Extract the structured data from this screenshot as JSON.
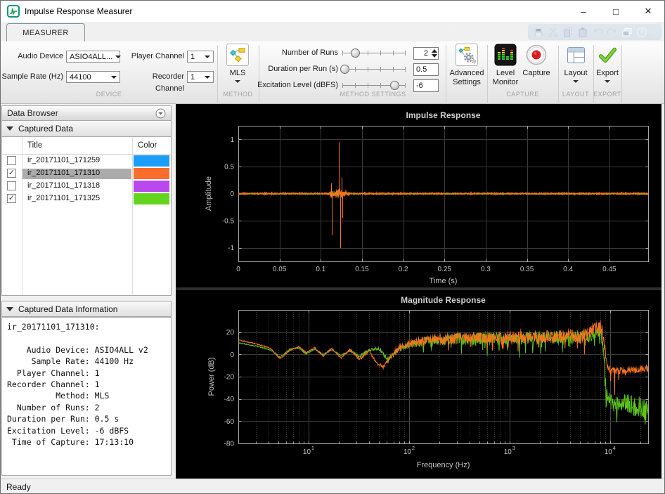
{
  "window": {
    "title": "Impulse Response Measurer",
    "minimize_glyph": "–",
    "maximize_glyph": "□",
    "close_glyph": "×",
    "status": "Ready"
  },
  "ribbon": {
    "tab": "MEASURER",
    "quick_access": [
      {
        "name": "save",
        "disabled": true
      },
      {
        "name": "cut",
        "disabled": true
      },
      {
        "name": "copy",
        "disabled": true
      },
      {
        "name": "paste",
        "disabled": true
      },
      {
        "name": "undo",
        "disabled": true
      },
      {
        "name": "redo",
        "disabled": true
      },
      {
        "name": "windows",
        "disabled": false
      },
      {
        "name": "help",
        "disabled": false
      }
    ]
  },
  "toolbar": {
    "device": {
      "section_label": "DEVICE",
      "audio_device": {
        "label": "Audio Device",
        "value": "ASIO4ALL..."
      },
      "player_channel": {
        "label": "Player Channel",
        "value": "1"
      },
      "sample_rate": {
        "label": "Sample Rate (Hz)",
        "value": "44100"
      },
      "recorder_channel": {
        "label": "Recorder Channel",
        "value": "1"
      }
    },
    "method": {
      "section_label": "METHOD",
      "button_label": "MLS"
    },
    "method_settings": {
      "section_label": "METHOD SETTINGS",
      "number_of_runs": {
        "label": "Number of Runs",
        "value": "2",
        "slider_pos": 0.2
      },
      "duration_per_run": {
        "label": "Duration per Run (s)",
        "value": "0.5",
        "slider_pos": 0.03
      },
      "excitation_level": {
        "label": "Excitation Level (dBFS)",
        "value": "-6",
        "slider_pos": 0.82
      },
      "advanced_line1": "Advanced",
      "advanced_line2": "Settings"
    },
    "capture": {
      "section_label": "CAPTURE",
      "level_monitor_line1": "Level",
      "level_monitor_line2": "Monitor",
      "capture_label": "Capture"
    },
    "layout": {
      "section_label": "LAYOUT",
      "button_label": "Layout"
    },
    "export": {
      "section_label": "EXPORT",
      "button_label": "Export"
    }
  },
  "data_browser": {
    "title": "Data Browser",
    "captured_data": {
      "header": "Captured Data",
      "columns": {
        "title": "Title",
        "color": "Color"
      },
      "rows": [
        {
          "checked": false,
          "selected": false,
          "title": "ir_20171101_171259",
          "color": "#1b9dfa"
        },
        {
          "checked": true,
          "selected": true,
          "title": "ir_20171101_171310",
          "color": "#fb6d2a"
        },
        {
          "checked": false,
          "selected": false,
          "title": "ir_20171101_171318",
          "color": "#b948ee"
        },
        {
          "checked": true,
          "selected": false,
          "title": "ir_20171101_171325",
          "color": "#64d41e"
        }
      ]
    },
    "info": {
      "header": "Captured Data Information",
      "lines": [
        "ir_20171101_171310:",
        "",
        "    Audio Device: ASIO4ALL v2",
        "     Sample Rate: 44100 Hz",
        "  Player Channel: 1",
        "Recorder Channel: 1",
        "          Method: MLS",
        "  Number of Runs: 2",
        "Duration per Run: 0.5 s",
        "Excitation Level: -6 dBFS",
        " Time of Capture: 17:13:10"
      ]
    }
  },
  "chart_data": [
    {
      "type": "line",
      "title": "Impulse Response",
      "xlabel": "Time (s)",
      "ylabel": "Amplitude",
      "xlim": [
        0,
        0.497
      ],
      "ylim": [
        -1.25,
        1.25
      ],
      "xticks": [
        0,
        0.05,
        0.1,
        0.15,
        0.2,
        0.25,
        0.3,
        0.35,
        0.4,
        0.45
      ],
      "yticks": [
        -1,
        -0.5,
        0,
        0.5,
        1
      ],
      "bg": "#000000",
      "grid": "#3a3a3a",
      "frame": "#a6a6a6",
      "text": "#c2c2c2",
      "series": [
        {
          "name": "ir_20171101_171325",
          "color": "#5fc31d",
          "seed": 7,
          "noise_base": 0.011,
          "bursts": [
            {
              "x": 0.1215,
              "w": 0.004,
              "a": 0.05
            },
            {
              "x": 0.113,
              "w": 0.002,
              "a": 0.03
            }
          ],
          "spikes": [
            [
              0.1218,
              0.25
            ],
            [
              0.1232,
              -0.35
            ]
          ]
        },
        {
          "name": "ir_20171101_171310",
          "color": "#f9731d",
          "seed": 3,
          "noise_base": 0.014,
          "bursts": [
            {
              "x": 0.113,
              "w": 0.0025,
              "a": 0.055
            },
            {
              "x": 0.1225,
              "w": 0.0045,
              "a": 0.09
            },
            {
              "x": 0.129,
              "w": 0.004,
              "a": 0.03
            }
          ],
          "spikes": [
            [
              0.1128,
              0.19
            ],
            [
              0.1136,
              -0.77
            ],
            [
              0.1222,
              0.95
            ],
            [
              0.1237,
              -1.0
            ],
            [
              0.1252,
              0.3
            ],
            [
              0.1262,
              -0.45
            ]
          ]
        }
      ]
    },
    {
      "type": "line",
      "xscale": "log",
      "title": "Magnitude Response",
      "xlabel": "Frequency (Hz)",
      "ylabel": "Power (dB)",
      "xlim": [
        2,
        24000
      ],
      "ylim": [
        -80,
        40
      ],
      "xtick_decades": [
        1,
        2,
        3,
        4
      ],
      "yticks": [
        -80,
        -60,
        -40,
        -20,
        0,
        20
      ],
      "bg": "#000000",
      "grid": "#3a3a3a",
      "grid_minor": "#313131",
      "frame": "#a6a6a6",
      "text": "#c2c2c2",
      "series": [
        {
          "name": "ir_20171101_171325",
          "color": "#5fc31d",
          "seed": 11,
          "env": [
            [
              2,
              10.5
            ],
            [
              3,
              7.5
            ],
            [
              4.2,
              4
            ],
            [
              5.2,
              -2.5
            ],
            [
              6.5,
              4.5
            ],
            [
              8,
              6
            ],
            [
              9.5,
              0.5
            ],
            [
              11.5,
              5
            ],
            [
              14,
              -0.5
            ],
            [
              17,
              4.5
            ],
            [
              21,
              -1
            ],
            [
              26,
              3.5
            ],
            [
              32,
              -2
            ],
            [
              40,
              4
            ],
            [
              50,
              5.5
            ],
            [
              62,
              -5
            ],
            [
              75,
              3
            ],
            [
              90,
              7
            ],
            [
              110,
              9.5
            ],
            [
              150,
              12
            ],
            [
              250,
              13.5
            ],
            [
              500,
              14
            ],
            [
              1000,
              14.5
            ],
            [
              2000,
              15
            ],
            [
              4000,
              15.5
            ],
            [
              6000,
              16.5
            ],
            [
              7200,
              19
            ],
            [
              8000,
              20
            ],
            [
              8600,
              8
            ],
            [
              9200,
              -38
            ],
            [
              10500,
              -46
            ],
            [
              14000,
              -44
            ],
            [
              19000,
              -48
            ],
            [
              24000,
              -50
            ]
          ],
          "spread": [
            [
              2,
              0.4
            ],
            [
              20,
              0.8
            ],
            [
              60,
              1.5
            ],
            [
              120,
              3.5
            ],
            [
              300,
              5
            ],
            [
              1000,
              5.5
            ],
            [
              5000,
              6
            ],
            [
              8000,
              5
            ],
            [
              9000,
              8
            ],
            [
              24000,
              11
            ]
          ],
          "neg_spikes": {
            "prob": 0.08,
            "depth": [
              [
                2,
                0
              ],
              [
                90,
                0
              ],
              [
                150,
                8
              ],
              [
                1000,
                14
              ],
              [
                6000,
                16
              ],
              [
                8300,
                10
              ],
              [
                9000,
                18
              ],
              [
                24000,
                18
              ]
            ]
          }
        },
        {
          "name": "ir_20171101_171310",
          "color": "#f9731d",
          "seed": 5,
          "env": [
            [
              2,
              13
            ],
            [
              3,
              9.5
            ],
            [
              4.2,
              5.5
            ],
            [
              5.2,
              -4
            ],
            [
              6.5,
              3.5
            ],
            [
              8,
              7
            ],
            [
              9.5,
              1.5
            ],
            [
              11.5,
              6
            ],
            [
              14,
              -1.5
            ],
            [
              17,
              5.5
            ],
            [
              21,
              -3
            ],
            [
              26,
              4.5
            ],
            [
              32,
              -4.5
            ],
            [
              40,
              3
            ],
            [
              48,
              -8
            ],
            [
              56,
              -11.5
            ],
            [
              66,
              -1
            ],
            [
              80,
              5.5
            ],
            [
              100,
              9.5
            ],
            [
              150,
              12.5
            ],
            [
              250,
              14
            ],
            [
              500,
              15
            ],
            [
              1000,
              15.5
            ],
            [
              2000,
              16
            ],
            [
              4000,
              16.5
            ],
            [
              6000,
              18
            ],
            [
              7200,
              23
            ],
            [
              7900,
              25
            ],
            [
              8400,
              21
            ],
            [
              8900,
              6
            ],
            [
              9400,
              -11
            ],
            [
              10500,
              -15
            ],
            [
              14000,
              -14
            ],
            [
              19000,
              -13.5
            ],
            [
              24000,
              -12.5
            ]
          ],
          "spread": [
            [
              2,
              0.4
            ],
            [
              20,
              0.8
            ],
            [
              60,
              1.5
            ],
            [
              120,
              3.5
            ],
            [
              300,
              5
            ],
            [
              1000,
              5.5
            ],
            [
              5000,
              6
            ],
            [
              8000,
              5.5
            ],
            [
              9500,
              3
            ],
            [
              24000,
              3
            ]
          ],
          "neg_spikes": {
            "prob": 0.07,
            "depth": [
              [
                2,
                0
              ],
              [
                90,
                0
              ],
              [
                150,
                6
              ],
              [
                1000,
                12
              ],
              [
                6000,
                14
              ],
              [
                8300,
                8
              ],
              [
                9000,
                25
              ],
              [
                11000,
                28
              ],
              [
                12500,
                6
              ],
              [
                24000,
                6
              ]
            ]
          }
        }
      ]
    }
  ]
}
